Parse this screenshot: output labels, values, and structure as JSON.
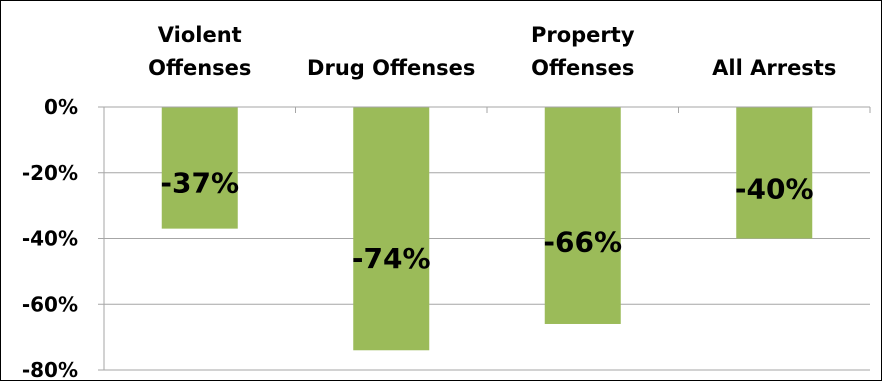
{
  "chart_data": {
    "type": "bar",
    "categories": [
      [
        "Violent",
        "Offenses"
      ],
      [
        "Drug Offenses"
      ],
      [
        "Property",
        "Offenses"
      ],
      [
        "All Arrests"
      ]
    ],
    "values": [
      -37,
      -74,
      -66,
      -40
    ],
    "data_labels": [
      "-37%",
      "-74%",
      "-66%",
      "-40%"
    ],
    "y_ticks": [
      0,
      -20,
      -40,
      -60,
      -80
    ],
    "y_tick_labels": [
      "0%",
      "-20%",
      "-40%",
      "-60%",
      "-80%"
    ],
    "ylim": [
      -80,
      0
    ],
    "grid": true,
    "legend": "none",
    "title": "",
    "xlabel": "",
    "ylabel": "",
    "colors": {
      "bar": "#9bbb59",
      "gridline": "#a6a6a6",
      "axis": "#a6a6a6",
      "text": "#000000"
    }
  }
}
